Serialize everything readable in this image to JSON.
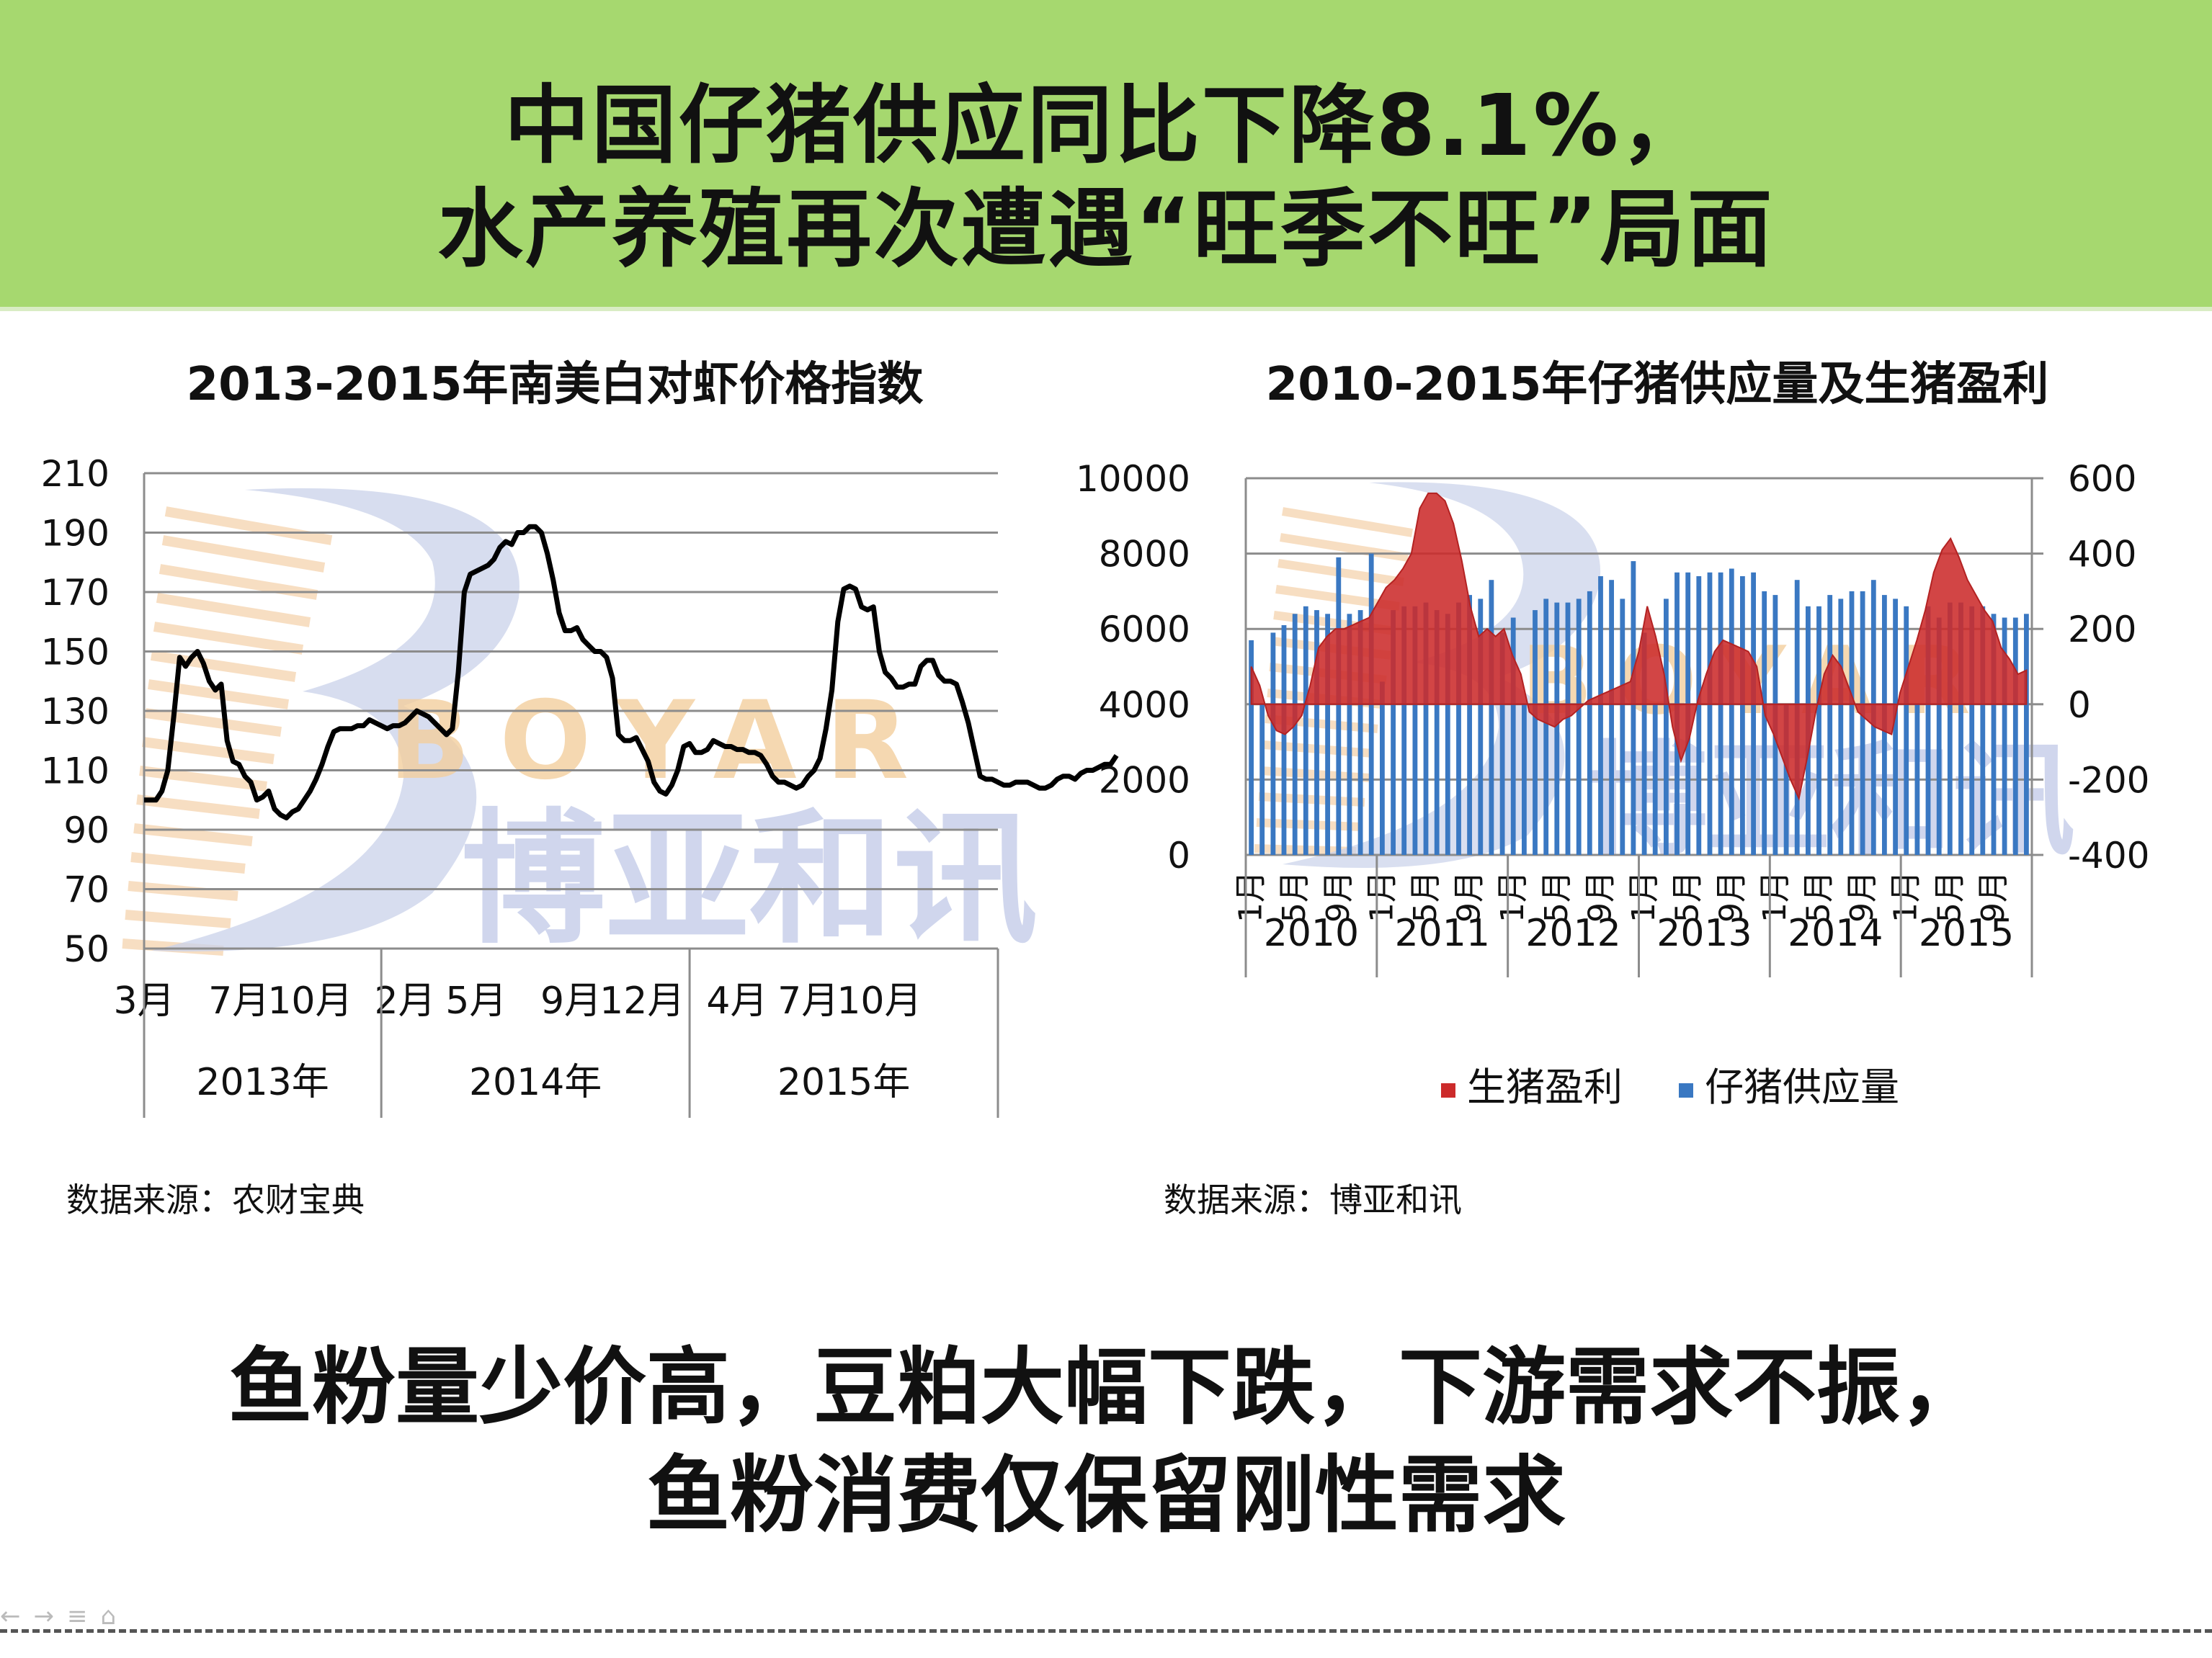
{
  "header": {
    "line1": "中国仔猪供应同比下降8.1%，",
    "line2": "水产养殖再次遭遇“旺季不旺”局面",
    "bg_color": "#a6d86f"
  },
  "watermark": {
    "brand": "BOYAR",
    "chinese": "博亚和讯"
  },
  "nav": {
    "icons": [
      "back-icon",
      "forward-icon",
      "menu-icon",
      "home-icon"
    ]
  },
  "left_source": "数据来源：农财宝典",
  "right_source": "数据来源：博亚和讯",
  "bottom": {
    "line1": "鱼粉量少价高，豆粕大幅下跌，下游需求不振，",
    "line2": "鱼粉消费仅保留刚性需求"
  },
  "chart_data": [
    {
      "type": "line",
      "title": "2013-2015年南美白对虾价格指数",
      "ylim": [
        50,
        210
      ],
      "yticks": [
        "210",
        "190",
        "170",
        "150",
        "130",
        "110",
        "90",
        "70",
        "50"
      ],
      "xtick_labels": [
        "3月",
        "7月",
        "10月",
        "2月",
        "5月",
        "9月",
        "12月",
        "4月",
        "7月",
        "10月"
      ],
      "xtick_index": [
        0,
        16,
        28,
        44,
        56,
        72,
        84,
        100,
        112,
        124
      ],
      "year_groups": [
        {
          "label": "2013年",
          "start": 0,
          "end": 40
        },
        {
          "label": "2014年",
          "start": 40,
          "end": 92
        },
        {
          "label": "2015年",
          "start": 92,
          "end": 144
        }
      ],
      "n_points": 145,
      "series": [
        {
          "color": "#000000",
          "values": [
            100,
            100,
            100,
            103,
            110,
            128,
            148,
            145,
            148,
            150,
            146,
            140,
            137,
            139,
            120,
            113,
            112,
            108,
            106,
            100,
            101,
            103,
            97,
            95,
            94,
            96,
            97,
            100,
            103,
            107,
            112,
            118,
            123,
            124,
            124,
            124,
            125,
            125,
            127,
            126,
            125,
            124,
            125,
            125,
            126,
            128,
            130,
            129,
            128,
            126,
            124,
            122,
            124,
            143,
            170,
            176,
            177,
            178,
            179,
            181,
            185,
            187,
            186,
            190,
            190,
            192,
            192,
            190,
            183,
            174,
            163,
            157,
            157,
            158,
            154,
            152,
            150,
            150,
            148,
            141,
            122,
            120,
            120,
            121,
            117,
            113,
            106,
            103,
            102,
            105,
            110,
            118,
            119,
            116,
            116,
            117,
            120,
            119,
            118,
            118,
            117,
            117,
            116,
            116,
            115,
            112,
            108,
            106,
            106,
            105,
            104,
            105,
            108,
            110,
            114,
            124,
            137,
            160,
            171,
            172,
            171,
            165,
            164,
            165,
            150,
            143,
            141,
            138,
            138,
            139,
            139,
            145,
            147,
            147,
            142,
            140,
            140,
            139,
            133,
            126,
            117,
            108,
            107,
            107,
            106,
            105,
            105,
            106,
            106,
            106,
            105,
            104,
            104,
            105,
            107,
            108,
            108,
            107,
            109,
            110,
            110,
            111,
            112,
            112,
            115
          ]
        }
      ]
    },
    {
      "type": "bar",
      "title": "2010-2015年仔猪供应量及生猪盈利",
      "ylim": [
        0,
        10000
      ],
      "y2lim": [
        -400,
        600
      ],
      "yticks": [
        "10000",
        "8000",
        "6000",
        "4000",
        "2000",
        "0"
      ],
      "y2ticks": [
        "600",
        "400",
        "200",
        "0",
        "-200",
        "-400"
      ],
      "month_labels": [
        "1月",
        "5月",
        "9月"
      ],
      "years": [
        "2010",
        "2011",
        "2012",
        "2013",
        "2014",
        "2015"
      ],
      "legend": [
        {
          "name": "生猪盈利",
          "color": "#cc2b2b"
        },
        {
          "name": "仔猪供应量",
          "color": "#3a78c2"
        }
      ],
      "legend_position": "bottom",
      "series": [
        {
          "name": "仔猪供应量",
          "type": "bar",
          "axis": "left",
          "color": "#3a78c2",
          "values": [
            5700,
            4000,
            5900,
            6100,
            6400,
            6600,
            6500,
            6400,
            7900,
            6400,
            6500,
            8000,
            4600,
            6500,
            6600,
            6600,
            6700,
            6500,
            6400,
            6700,
            6900,
            6800,
            7300,
            5900,
            6300,
            4000,
            6500,
            6800,
            6700,
            6700,
            6800,
            7000,
            7400,
            7300,
            6800,
            7800,
            5900,
            4000,
            6800,
            7500,
            7500,
            7400,
            7500,
            7500,
            7600,
            7400,
            7500,
            7000,
            6900,
            4000,
            7300,
            6600,
            6600,
            6900,
            6800,
            7000,
            7000,
            7300,
            6900,
            6800,
            6600,
            4000,
            6600,
            6300,
            6700,
            6700,
            6600,
            6600,
            6400,
            6300,
            6300,
            6400
          ]
        },
        {
          "name": "生猪盈利",
          "type": "area",
          "axis": "right",
          "color": "#cc2b2b",
          "values": [
            100,
            50,
            -30,
            -70,
            -80,
            -60,
            -30,
            50,
            150,
            180,
            200,
            200,
            210,
            220,
            230,
            270,
            310,
            330,
            360,
            400,
            520,
            560,
            560,
            540,
            480,
            380,
            260,
            180,
            200,
            180,
            200,
            130,
            80,
            -20,
            -40,
            -50,
            -60,
            -40,
            -30,
            -10,
            10,
            20,
            30,
            40,
            50,
            60,
            140,
            260,
            180,
            80,
            -60,
            -150,
            -90,
            10,
            80,
            140,
            170,
            160,
            150,
            140,
            100,
            -30,
            -80,
            -140,
            -200,
            -250,
            -140,
            -20,
            80,
            130,
            100,
            40,
            -20,
            -40,
            -60,
            -70,
            -80,
            30,
            100,
            170,
            250,
            350,
            410,
            440,
            390,
            330,
            290,
            250,
            220,
            150,
            120,
            80,
            90
          ]
        }
      ]
    }
  ]
}
